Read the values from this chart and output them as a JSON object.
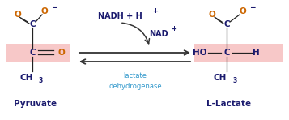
{
  "bg_color": "#ffffff",
  "pink_color": "#f7c8c8",
  "dark_blue": "#1a1a6e",
  "dark_orange": "#cc6600",
  "cyan_text": "#3399cc",
  "black": "#222222",
  "arrow_color": "#333333",
  "fig_width": 3.57,
  "fig_height": 1.48,
  "dpi": 100,
  "pyruvate_label": "Pyruvate",
  "lactate_label": "L-Lactate",
  "enzyme_label": "lactate\ndehydrogenase",
  "nadh_label": "NADH + H",
  "nad_label": "NAD"
}
